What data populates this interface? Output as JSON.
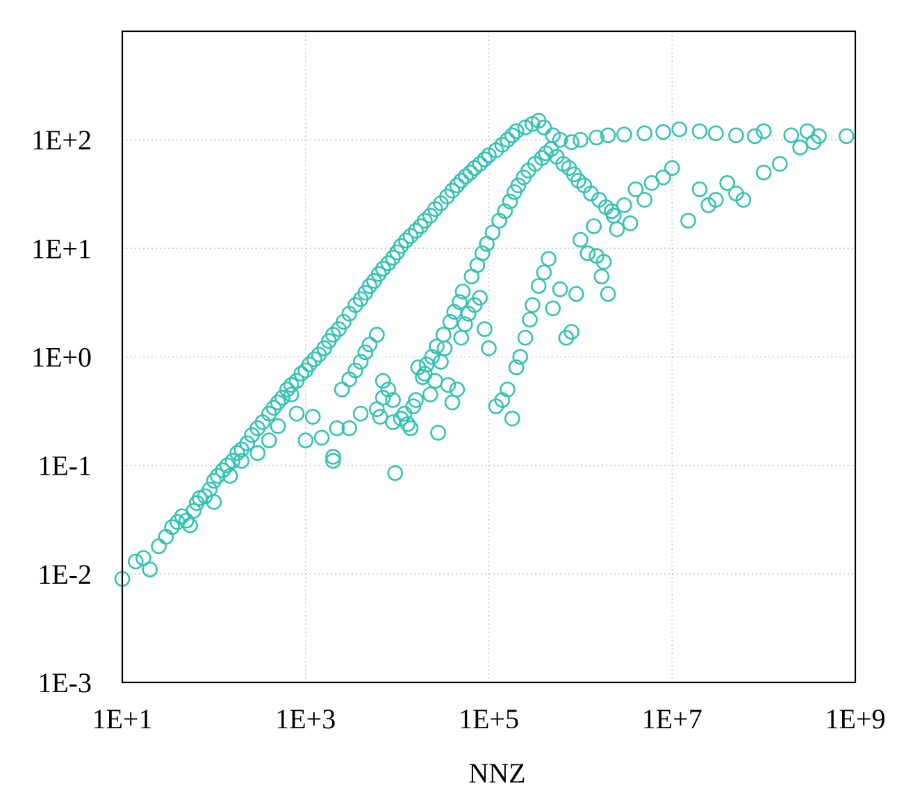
{
  "chart_data": {
    "type": "scatter",
    "title": "",
    "xlabel": "NNZ",
    "ylabel": "",
    "x_scale": "log",
    "y_scale": "log",
    "xlim": [
      10,
      1000000000
    ],
    "ylim": [
      0.001,
      1000
    ],
    "x_ticks": [
      10,
      1000,
      100000,
      10000000,
      1000000000
    ],
    "x_tick_labels": [
      "1E+1",
      "1E+3",
      "1E+5",
      "1E+7",
      "1E+9"
    ],
    "y_ticks": [
      0.001,
      0.01,
      0.1,
      1,
      10,
      100
    ],
    "y_tick_labels": [
      "1E-3",
      "1E-2",
      "1E-1",
      "1E+0",
      "1E+1",
      "1E+2"
    ],
    "grid": true,
    "legend": "none",
    "marker": "open-circle",
    "marker_color": "#33c2b3",
    "series": [
      {
        "points": [
          [
            10,
            0.009
          ],
          [
            14,
            0.013
          ],
          [
            17,
            0.014
          ],
          [
            20,
            0.011
          ],
          [
            25,
            0.018
          ],
          [
            30,
            0.022
          ],
          [
            35,
            0.027
          ],
          [
            40,
            0.03
          ],
          [
            45,
            0.034
          ],
          [
            50,
            0.031
          ],
          [
            55,
            0.028
          ],
          [
            60,
            0.038
          ],
          [
            65,
            0.045
          ],
          [
            70,
            0.05
          ],
          [
            80,
            0.052
          ],
          [
            90,
            0.06
          ],
          [
            100,
            0.072
          ],
          [
            110,
            0.08
          ],
          [
            125,
            0.09
          ],
          [
            140,
            0.1
          ],
          [
            160,
            0.11
          ],
          [
            180,
            0.13
          ],
          [
            200,
            0.14
          ],
          [
            230,
            0.16
          ],
          [
            260,
            0.19
          ],
          [
            300,
            0.22
          ],
          [
            340,
            0.25
          ],
          [
            400,
            0.3
          ],
          [
            450,
            0.34
          ],
          [
            500,
            0.38
          ],
          [
            560,
            0.42
          ],
          [
            630,
            0.5
          ],
          [
            700,
            0.55
          ],
          [
            800,
            0.6
          ],
          [
            900,
            0.7
          ],
          [
            1000,
            0.75
          ],
          [
            1100,
            0.85
          ],
          [
            1250,
            0.95
          ],
          [
            1400,
            1.05
          ],
          [
            1600,
            1.2
          ],
          [
            1800,
            1.4
          ],
          [
            2000,
            1.6
          ],
          [
            2300,
            1.8
          ],
          [
            2600,
            2.1
          ],
          [
            3000,
            2.5
          ],
          [
            3500,
            3.0
          ],
          [
            4000,
            3.4
          ],
          [
            4500,
            3.9
          ],
          [
            5000,
            4.5
          ],
          [
            5600,
            5.0
          ],
          [
            6300,
            5.8
          ],
          [
            7000,
            6.5
          ],
          [
            8000,
            7.3
          ],
          [
            9000,
            8.2
          ],
          [
            10000,
            9.2
          ],
          [
            11000,
            10.5
          ],
          [
            12500,
            11.8
          ],
          [
            14000,
            13
          ],
          [
            16000,
            14.5
          ],
          [
            18000,
            16
          ],
          [
            20000,
            18
          ],
          [
            23000,
            20
          ],
          [
            26000,
            23
          ],
          [
            30000,
            26
          ],
          [
            35000,
            30
          ],
          [
            40000,
            34
          ],
          [
            45000,
            38
          ],
          [
            50000,
            42
          ],
          [
            56000,
            46
          ],
          [
            63000,
            50
          ],
          [
            70000,
            55
          ],
          [
            80000,
            60
          ],
          [
            90000,
            66
          ],
          [
            100000,
            72
          ],
          [
            120000,
            80
          ],
          [
            140000,
            90
          ],
          [
            160000,
            100
          ],
          [
            180000,
            110
          ],
          [
            200000,
            120
          ],
          [
            250000,
            130
          ],
          [
            300000,
            140
          ],
          [
            350000,
            150
          ],
          [
            400000,
            130
          ],
          [
            500000,
            110
          ],
          [
            600000,
            100
          ],
          [
            800000,
            95
          ],
          [
            1000000,
            100
          ],
          [
            1500000,
            105
          ],
          [
            2000000,
            110
          ],
          [
            3000000,
            112
          ],
          [
            5000000,
            115
          ],
          [
            8000000,
            118
          ],
          [
            12000000,
            125
          ],
          [
            20000000,
            120
          ],
          [
            30000000,
            115
          ],
          [
            50000000,
            110
          ],
          [
            80000000,
            108
          ],
          [
            100000000,
            120
          ],
          [
            200000000,
            110
          ],
          [
            300000000,
            120
          ],
          [
            400000000,
            108
          ],
          [
            800000000,
            108
          ],
          [
            700,
            0.45
          ],
          [
            1200,
            0.28
          ],
          [
            1500,
            0.18
          ],
          [
            2200,
            0.22
          ],
          [
            2500,
            0.5
          ],
          [
            3000,
            0.62
          ],
          [
            3500,
            0.75
          ],
          [
            4000,
            0.9
          ],
          [
            4500,
            1.1
          ],
          [
            5000,
            1.3
          ],
          [
            6000,
            1.6
          ],
          [
            7000,
            0.6
          ],
          [
            8000,
            0.5
          ],
          [
            9000,
            0.4
          ],
          [
            9500,
            0.085
          ],
          [
            11000,
            0.27
          ],
          [
            13000,
            0.24
          ],
          [
            15000,
            0.35
          ],
          [
            17000,
            0.8
          ],
          [
            20000,
            0.7
          ],
          [
            23000,
            0.45
          ],
          [
            26000,
            0.6
          ],
          [
            28000,
            0.2
          ],
          [
            30000,
            0.9
          ],
          [
            33000,
            1.2
          ],
          [
            36000,
            0.55
          ],
          [
            40000,
            0.38
          ],
          [
            45000,
            0.5
          ],
          [
            50000,
            1.5
          ],
          [
            55000,
            2.0
          ],
          [
            60000,
            2.5
          ],
          [
            70000,
            3.0
          ],
          [
            80000,
            3.5
          ],
          [
            90000,
            1.8
          ],
          [
            100000,
            1.2
          ],
          [
            120000,
            0.35
          ],
          [
            140000,
            0.4
          ],
          [
            160000,
            0.5
          ],
          [
            180000,
            0.27
          ],
          [
            200000,
            0.8
          ],
          [
            220000,
            1.0
          ],
          [
            250000,
            1.5
          ],
          [
            280000,
            2.2
          ],
          [
            300000,
            3.0
          ],
          [
            350000,
            4.5
          ],
          [
            400000,
            6.0
          ],
          [
            450000,
            8.0
          ],
          [
            500000,
            2.8
          ],
          [
            600000,
            4.2
          ],
          [
            700000,
            1.5
          ],
          [
            800000,
            1.7
          ],
          [
            900000,
            3.8
          ],
          [
            1000000,
            12
          ],
          [
            1200000,
            9
          ],
          [
            1400000,
            16
          ],
          [
            1500000,
            8.5
          ],
          [
            1700000,
            5.5
          ],
          [
            1800000,
            7.5
          ],
          [
            2000000,
            3.8
          ],
          [
            2200000,
            22
          ],
          [
            2500000,
            15
          ],
          [
            3000000,
            25
          ],
          [
            3500000,
            17
          ],
          [
            4000000,
            35
          ],
          [
            5000000,
            28
          ],
          [
            6000000,
            40
          ],
          [
            8000000,
            45
          ],
          [
            10000000,
            55
          ],
          [
            15000000,
            18
          ],
          [
            20000000,
            35
          ],
          [
            25000000,
            25
          ],
          [
            30000000,
            28
          ],
          [
            40000000,
            40
          ],
          [
            50000000,
            32
          ],
          [
            60000000,
            28
          ],
          [
            100000000,
            50
          ],
          [
            150000000,
            60
          ],
          [
            250000000,
            85
          ],
          [
            350000000,
            95
          ],
          [
            100,
            0.046
          ],
          [
            150,
            0.08
          ],
          [
            200,
            0.11
          ],
          [
            300,
            0.13
          ],
          [
            400,
            0.17
          ],
          [
            500,
            0.23
          ],
          [
            800,
            0.3
          ],
          [
            1000,
            0.17
          ],
          [
            2000,
            0.12
          ],
          [
            2000,
            0.11
          ],
          [
            3000,
            0.22
          ],
          [
            4000,
            0.3
          ],
          [
            6000,
            0.33
          ],
          [
            6500,
            0.28
          ],
          [
            7000,
            0.42
          ],
          [
            9000,
            0.25
          ],
          [
            12000,
            0.3
          ],
          [
            14000,
            0.22
          ],
          [
            16000,
            0.4
          ],
          [
            19000,
            0.65
          ],
          [
            21000,
            0.85
          ],
          [
            24000,
            1.0
          ],
          [
            27000,
            1.25
          ],
          [
            32000,
            1.6
          ],
          [
            38000,
            2.1
          ],
          [
            42000,
            2.6
          ],
          [
            48000,
            3.2
          ],
          [
            52000,
            4.0
          ],
          [
            65000,
            5.5
          ],
          [
            75000,
            7.0
          ],
          [
            85000,
            9.0
          ],
          [
            95000,
            11
          ],
          [
            110000,
            14
          ],
          [
            130000,
            18
          ],
          [
            150000,
            22
          ],
          [
            170000,
            27
          ],
          [
            190000,
            33
          ],
          [
            210000,
            38
          ],
          [
            240000,
            45
          ],
          [
            270000,
            52
          ],
          [
            320000,
            60
          ],
          [
            380000,
            68
          ],
          [
            420000,
            75
          ],
          [
            480000,
            82
          ],
          [
            550000,
            70
          ],
          [
            650000,
            60
          ],
          [
            750000,
            55
          ],
          [
            850000,
            48
          ],
          [
            950000,
            42
          ],
          [
            1100000,
            38
          ],
          [
            1300000,
            32
          ],
          [
            1600000,
            28
          ],
          [
            1900000,
            24
          ],
          [
            2300000,
            20
          ]
        ]
      }
    ]
  }
}
